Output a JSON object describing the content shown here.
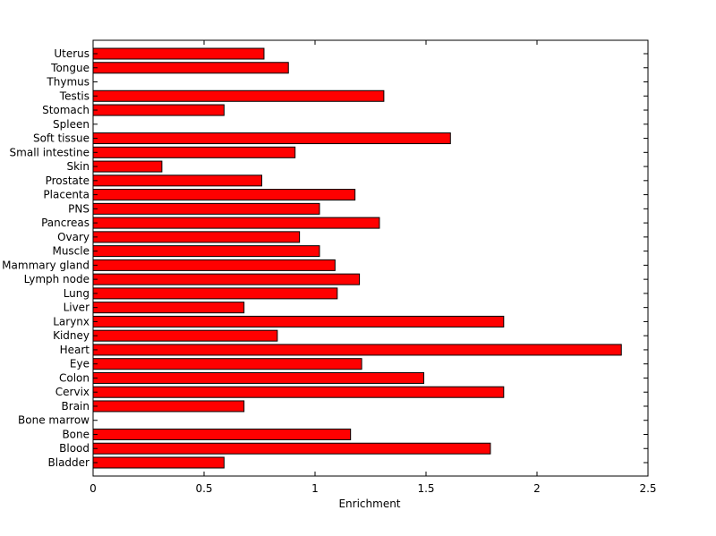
{
  "chart_data": {
    "type": "bar",
    "orientation": "horizontal",
    "categories": [
      "Bladder",
      "Blood",
      "Bone",
      "Bone marrow",
      "Brain",
      "Cervix",
      "Colon",
      "Eye",
      "Heart",
      "Kidney",
      "Larynx",
      "Liver",
      "Lung",
      "Lymph node",
      "Mammary gland",
      "Muscle",
      "Ovary",
      "Pancreas",
      "PNS",
      "Placenta",
      "Prostate",
      "Skin",
      "Small intestine",
      "Soft tissue",
      "Spleen",
      "Stomach",
      "Testis",
      "Thymus",
      "Tongue",
      "Uterus"
    ],
    "values": [
      0.59,
      1.79,
      1.16,
      0,
      0.68,
      1.85,
      1.49,
      1.21,
      2.38,
      0.83,
      1.85,
      0.68,
      1.1,
      1.2,
      1.09,
      1.02,
      0.93,
      1.29,
      1.02,
      1.18,
      0.76,
      0.31,
      0.91,
      1.61,
      0,
      0.59,
      1.31,
      0,
      0.88,
      0.77
    ],
    "xlabel": "Enrichment",
    "ylabel": "",
    "title": "",
    "xlim": [
      0,
      2.5
    ],
    "xticks": [
      "0",
      "0.5",
      "1",
      "1.5",
      "2",
      "2.5"
    ],
    "grid": false,
    "colors": {
      "bar_fill": "#ff0000",
      "bar_edge": "#000000",
      "axis": "#000000"
    }
  }
}
